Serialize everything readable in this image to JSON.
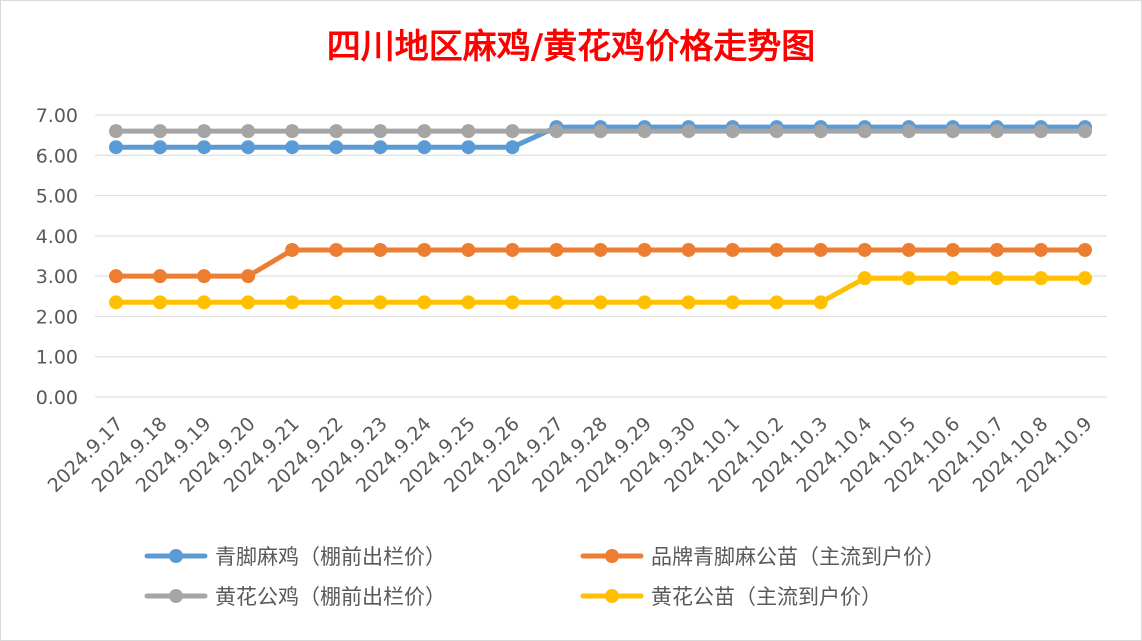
{
  "chart_data": {
    "type": "line",
    "title": "四川地区麻鸡/黄花鸡价格走势图",
    "title_color": "#ff0000",
    "x": [
      "2024.9.17",
      "2024.9.18",
      "2024.9.19",
      "2024.9.20",
      "2024.9.21",
      "2024.9.22",
      "2024.9.23",
      "2024.9.24",
      "2024.9.25",
      "2024.9.26",
      "2024.9.27",
      "2024.9.28",
      "2024.9.29",
      "2024.9.30",
      "2024.10.1",
      "2024.10.2",
      "2024.10.3",
      "2024.10.4",
      "2024.10.5",
      "2024.10.6",
      "2024.10.7",
      "2024.10.8",
      "2024.10.9"
    ],
    "y_ticks": [
      "0.00",
      "1.00",
      "2.00",
      "3.00",
      "4.00",
      "5.00",
      "6.00",
      "7.00"
    ],
    "ylim": [
      0,
      7
    ],
    "grid": true,
    "legend_position": "bottom",
    "series": [
      {
        "name": "青脚麻鸡（棚前出栏价）",
        "color": "#5b9bd5",
        "values": [
          6.2,
          6.2,
          6.2,
          6.2,
          6.2,
          6.2,
          6.2,
          6.2,
          6.2,
          6.2,
          6.7,
          6.7,
          6.7,
          6.7,
          6.7,
          6.7,
          6.7,
          6.7,
          6.7,
          6.7,
          6.7,
          6.7,
          6.7
        ]
      },
      {
        "name": "品牌青脚麻公苗（主流到户价）",
        "color": "#ed7d31",
        "values": [
          3.0,
          3.0,
          3.0,
          3.0,
          3.65,
          3.65,
          3.65,
          3.65,
          3.65,
          3.65,
          3.65,
          3.65,
          3.65,
          3.65,
          3.65,
          3.65,
          3.65,
          3.65,
          3.65,
          3.65,
          3.65,
          3.65,
          3.65
        ]
      },
      {
        "name": "黄花公鸡（棚前出栏价）",
        "color": "#a5a5a5",
        "values": [
          6.6,
          6.6,
          6.6,
          6.6,
          6.6,
          6.6,
          6.6,
          6.6,
          6.6,
          6.6,
          6.6,
          6.6,
          6.6,
          6.6,
          6.6,
          6.6,
          6.6,
          6.6,
          6.6,
          6.6,
          6.6,
          6.6,
          6.6
        ]
      },
      {
        "name": "黄花公苗（主流到户价）",
        "color": "#ffc000",
        "values": [
          2.35,
          2.35,
          2.35,
          2.35,
          2.35,
          2.35,
          2.35,
          2.35,
          2.35,
          2.35,
          2.35,
          2.35,
          2.35,
          2.35,
          2.35,
          2.35,
          2.35,
          2.95,
          2.95,
          2.95,
          2.95,
          2.95,
          2.95
        ]
      }
    ]
  }
}
